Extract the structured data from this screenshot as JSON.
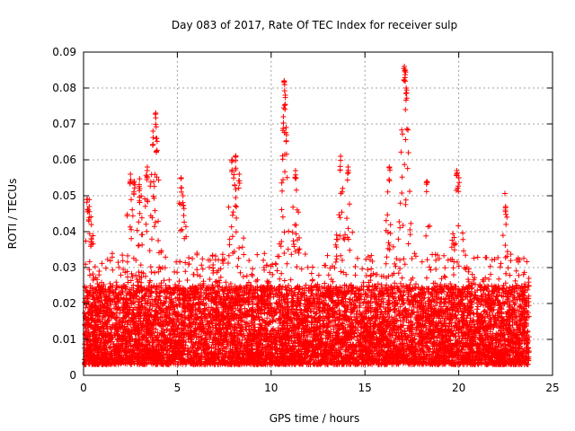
{
  "chart_data": {
    "type": "scatter",
    "title": "Day 083 of 2017, Rate Of TEC Index for receiver sulp",
    "xlabel": "GPS time / hours",
    "ylabel": "ROTI / TECUs",
    "xlim": [
      0,
      25
    ],
    "ylim": [
      0,
      0.09
    ],
    "xticks": [
      0,
      5,
      10,
      15,
      20,
      25
    ],
    "yticks": [
      0,
      0.01,
      0.02,
      0.03,
      0.04,
      0.05,
      0.06,
      0.07,
      0.08,
      0.09
    ],
    "grid": true,
    "marker": "+",
    "color": "#ff0000",
    "series": [
      {
        "name": "ROTI",
        "x_range": [
          0.05,
          23.75
        ],
        "baseline_range": [
          0.003,
          0.025
        ],
        "notable_points": [
          {
            "x": 0.2,
            "y": 0.049
          },
          {
            "x": 0.3,
            "y": 0.047
          },
          {
            "x": 0.4,
            "y": 0.038
          },
          {
            "x": 2.5,
            "y": 0.056
          },
          {
            "x": 2.7,
            "y": 0.054
          },
          {
            "x": 3.0,
            "y": 0.052
          },
          {
            "x": 3.4,
            "y": 0.058
          },
          {
            "x": 3.7,
            "y": 0.068
          },
          {
            "x": 3.85,
            "y": 0.073
          },
          {
            "x": 3.9,
            "y": 0.066
          },
          {
            "x": 5.2,
            "y": 0.055
          },
          {
            "x": 5.3,
            "y": 0.05
          },
          {
            "x": 7.9,
            "y": 0.06
          },
          {
            "x": 8.1,
            "y": 0.061
          },
          {
            "x": 8.3,
            "y": 0.056
          },
          {
            "x": 10.7,
            "y": 0.082
          },
          {
            "x": 10.75,
            "y": 0.078
          },
          {
            "x": 10.65,
            "y": 0.072
          },
          {
            "x": 10.8,
            "y": 0.069
          },
          {
            "x": 11.3,
            "y": 0.057
          },
          {
            "x": 13.7,
            "y": 0.061
          },
          {
            "x": 14.1,
            "y": 0.058
          },
          {
            "x": 16.3,
            "y": 0.058
          },
          {
            "x": 17.1,
            "y": 0.086
          },
          {
            "x": 17.15,
            "y": 0.085
          },
          {
            "x": 17.2,
            "y": 0.08
          },
          {
            "x": 18.3,
            "y": 0.054
          },
          {
            "x": 19.9,
            "y": 0.057
          },
          {
            "x": 20.0,
            "y": 0.055
          },
          {
            "x": 22.5,
            "y": 0.047
          }
        ]
      }
    ]
  }
}
